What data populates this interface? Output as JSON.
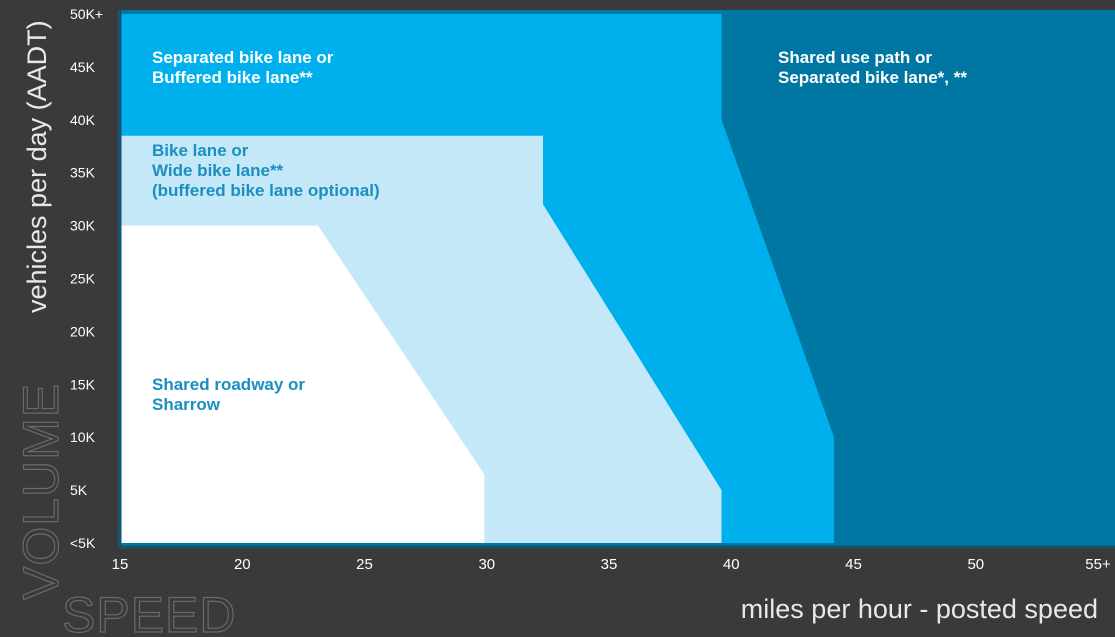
{
  "chart_data": {
    "type": "area",
    "title": "",
    "xlabel_big": "SPEED",
    "xlabel": "miles per hour - posted speed",
    "ylabel_big": "VOLUME",
    "ylabel": "vehicles per day (AADT)",
    "xlim": [
      15,
      55
    ],
    "ylim": [
      0,
      50000
    ],
    "x_ticks": [
      {
        "value": 15,
        "label": "15"
      },
      {
        "value": 20,
        "label": "20"
      },
      {
        "value": 25,
        "label": "25"
      },
      {
        "value": 30,
        "label": "30"
      },
      {
        "value": 35,
        "label": "35"
      },
      {
        "value": 40,
        "label": "40"
      },
      {
        "value": 45,
        "label": "45"
      },
      {
        "value": 50,
        "label": "50"
      },
      {
        "value": 55,
        "label": "55+"
      }
    ],
    "y_ticks": [
      {
        "value": 0,
        "label": "<5K"
      },
      {
        "value": 5000,
        "label": "5K"
      },
      {
        "value": 10000,
        "label": "10K"
      },
      {
        "value": 15000,
        "label": "15K"
      },
      {
        "value": 20000,
        "label": "20K"
      },
      {
        "value": 25000,
        "label": "25K"
      },
      {
        "value": 30000,
        "label": "30K"
      },
      {
        "value": 35000,
        "label": "35K"
      },
      {
        "value": 40000,
        "label": "40K"
      },
      {
        "value": 45000,
        "label": "45K"
      },
      {
        "value": 50000,
        "label": "50K+"
      }
    ],
    "grid": false,
    "zones": [
      {
        "name": "Shared use path or Separated bike lane*, **",
        "lines": [
          "Shared use path or",
          "Separated bike lane*, **"
        ],
        "color": "#0077a3",
        "label_color": "#ffffff",
        "boundary": []
      },
      {
        "name": "Separated bike lane or Buffered bike lane**",
        "lines": [
          "Separated bike lane or",
          "Buffered bike lane**"
        ],
        "color": "#00b0ec",
        "label_color": "#ffffff",
        "boundary": [
          [
            15,
            0
          ],
          [
            44.2,
            0
          ],
          [
            44.2,
            10000
          ],
          [
            39.6,
            40000
          ],
          [
            39.6,
            50000
          ],
          [
            15,
            50000
          ]
        ]
      },
      {
        "name": "Bike lane or Wide bike lane** (buffered bike lane optional)",
        "lines": [
          "Bike lane or",
          "Wide bike lane**",
          "(buffered bike lane optional)"
        ],
        "color": "#c5e8f8",
        "label_color": "#1a8fc0",
        "boundary": [
          [
            15,
            0
          ],
          [
            39.6,
            0
          ],
          [
            39.6,
            5000
          ],
          [
            32.3,
            32000
          ],
          [
            32.3,
            38500
          ],
          [
            15,
            38500
          ]
        ]
      },
      {
        "name": "Shared roadway or Sharrow",
        "lines": [
          "Shared roadway or",
          "Sharrow"
        ],
        "color": "#ffffff",
        "label_color": "#1a8fc0",
        "boundary": [
          [
            15,
            0
          ],
          [
            29.9,
            0
          ],
          [
            29.9,
            6500
          ],
          [
            23.1,
            30000
          ],
          [
            15,
            30000
          ]
        ]
      }
    ]
  },
  "colors": {
    "frame": "#3a3a3a",
    "tick_text": "#ffffff",
    "big_label_text": "#5a5a5a",
    "axis_caption_text": "#e8e8e8"
  }
}
